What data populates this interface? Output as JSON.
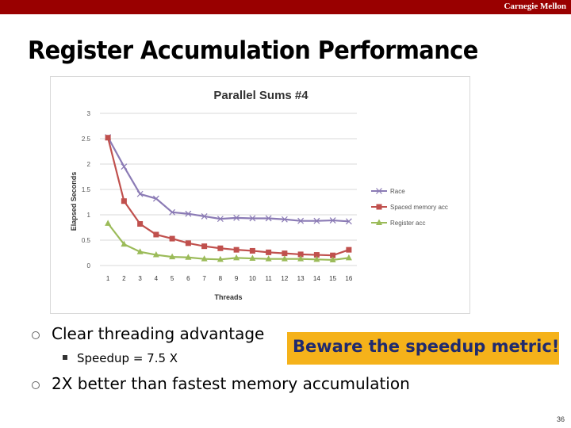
{
  "header": {
    "institution": "Carnegie Mellon"
  },
  "slide": {
    "title": "Register Accumulation Performance",
    "bullets": [
      {
        "text": "Clear threading advantage",
        "sub": "Speedup = 7.5 X"
      },
      {
        "text": "2X better than fastest memory accumulation"
      }
    ],
    "callout": "Beware the speedup metric!",
    "page_number": "36"
  },
  "chart_data": {
    "type": "line",
    "title": "Parallel Sums #4",
    "xlabel": "Threads",
    "ylabel": "Elapsed Seconds",
    "x": [
      1,
      2,
      3,
      4,
      5,
      6,
      7,
      8,
      9,
      10,
      11,
      12,
      13,
      14,
      15,
      16
    ],
    "ylim": [
      0,
      3
    ],
    "yticks": [
      "0",
      "0.5",
      "1",
      "1.5",
      "2",
      "2.5",
      "3"
    ],
    "grid": true,
    "legend_position": "right",
    "series": [
      {
        "name": "Race",
        "color": "#8b7bb5",
        "marker": "x",
        "values": [
          2.53,
          1.95,
          1.41,
          1.32,
          1.05,
          1.02,
          0.97,
          0.92,
          0.94,
          0.93,
          0.93,
          0.91,
          0.88,
          0.88,
          0.89,
          0.87
        ]
      },
      {
        "name": "Spaced memory acc",
        "color": "#c0504d",
        "marker": "square",
        "values": [
          2.52,
          1.27,
          0.82,
          0.61,
          0.53,
          0.44,
          0.38,
          0.34,
          0.31,
          0.29,
          0.26,
          0.24,
          0.22,
          0.21,
          0.2,
          0.31
        ]
      },
      {
        "name": "Register acc",
        "color": "#9bbb59",
        "marker": "triangle",
        "values": [
          0.83,
          0.42,
          0.27,
          0.21,
          0.17,
          0.16,
          0.13,
          0.12,
          0.15,
          0.14,
          0.13,
          0.13,
          0.13,
          0.12,
          0.11,
          0.15
        ]
      }
    ]
  }
}
